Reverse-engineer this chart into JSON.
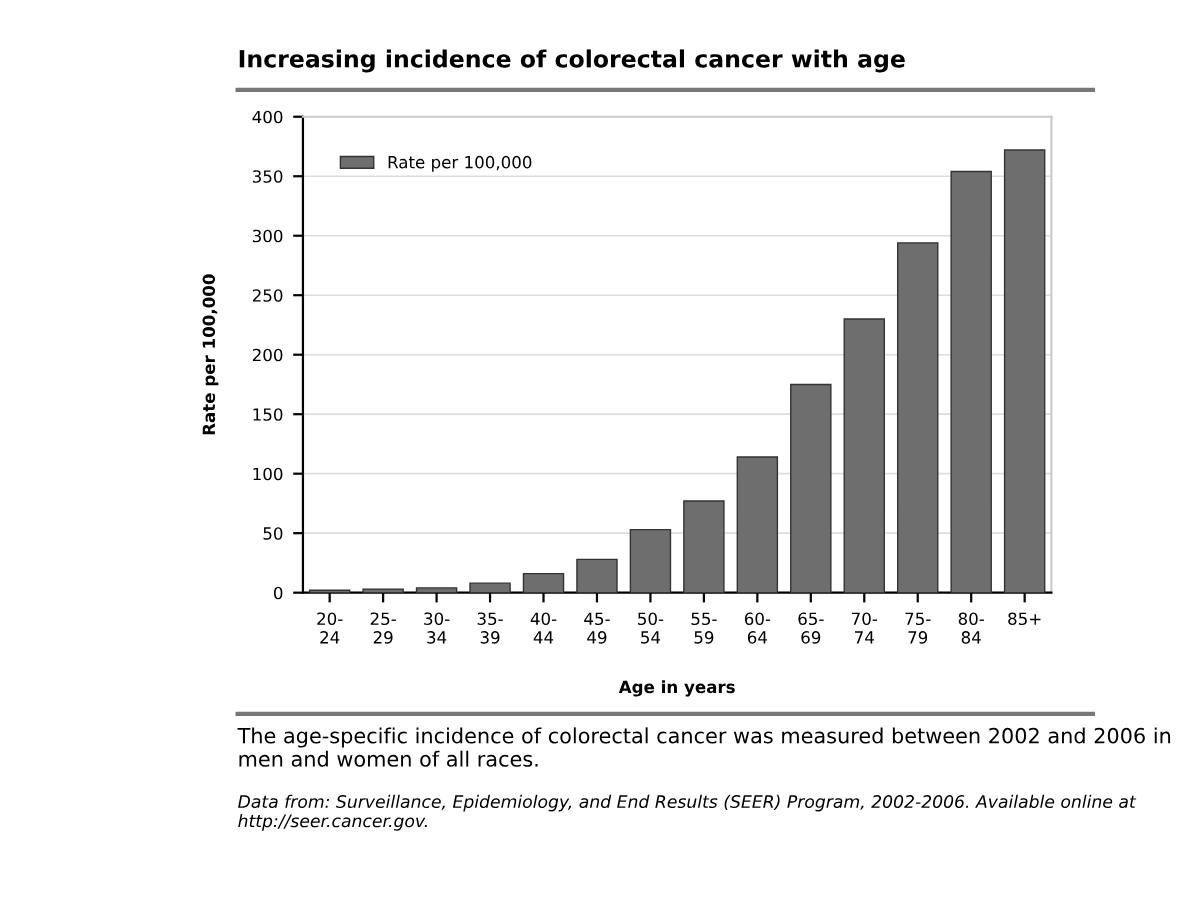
{
  "chart_data": {
    "type": "bar",
    "title": "Increasing incidence of colorectal cancer with age",
    "xlabel": "Age in years",
    "ylabel": "Rate per 100,000",
    "categories": [
      "20-\n24",
      "25-\n29",
      "30-\n34",
      "35-\n39",
      "40-\n44",
      "45-\n49",
      "50-\n54",
      "55-\n59",
      "60-\n64",
      "65-\n69",
      "70-\n74",
      "75-\n79",
      "80-\n84",
      "85+"
    ],
    "series": [
      {
        "name": "Rate per 100,000",
        "color": "#6e6e6e",
        "values": [
          2,
          3,
          4,
          8,
          16,
          28,
          53,
          77,
          114,
          175,
          230,
          294,
          354,
          372
        ]
      }
    ],
    "ylim": [
      0,
      400
    ],
    "yticks": [
      0,
      50,
      100,
      150,
      200,
      250,
      300,
      350,
      400
    ],
    "grid": "y",
    "legend": "top left",
    "annotations": [
      "The age-specific incidence of colorectal cancer was measured between 2002 and 2006 in men and women of all races.",
      "Data from: Surveillance, Epidemiology, and End Results (SEER) Program, 2002-2006. Available online at http://seer.cancer.gov."
    ]
  }
}
